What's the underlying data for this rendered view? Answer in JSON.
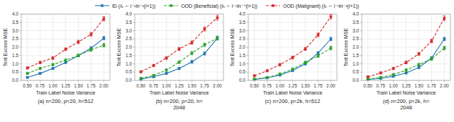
{
  "chart_data": [
    {
      "type": "line",
      "caption": "(a) n=200, p=20, h=512",
      "xlabel": "Train Label Noise Variance",
      "ylabel": "Test Excess MSE",
      "x": [
        0.5,
        0.75,
        1.0,
        1.25,
        1.5,
        1.75,
        2.0
      ],
      "series": [
        {
          "name": "ID (λᵢ ∼ i⁻¹ln⁻³(i+1))",
          "color": "#1f77b4",
          "line_style": "solid",
          "marker": "square",
          "values": [
            0.18,
            0.42,
            0.72,
            1.08,
            1.5,
            1.95,
            2.55
          ],
          "errors": [
            0.04,
            0.05,
            0.06,
            0.06,
            0.07,
            0.08,
            0.1
          ]
        },
        {
          "name": "OOD (Beneficial) (λᵢ ∼ i⁻¹ln⁻⁴(i+1))",
          "color": "#2ca02c",
          "line_style": "dashed",
          "marker": "square",
          "values": [
            0.42,
            0.72,
            0.95,
            1.22,
            1.5,
            1.85,
            2.12
          ],
          "errors": [
            0.05,
            0.06,
            0.07,
            0.07,
            0.08,
            0.09,
            0.11
          ]
        },
        {
          "name": "OOD (Malignant) (λᵢ ∼ i⁻¹ln⁻²(i+1))",
          "color": "#d62728",
          "line_style": "dashed",
          "marker": "square",
          "values": [
            0.75,
            1.08,
            1.35,
            1.88,
            2.32,
            2.78,
            3.72
          ],
          "errors": [
            0.06,
            0.07,
            0.08,
            0.08,
            0.1,
            0.11,
            0.13
          ]
        }
      ],
      "xlim": [
        0.38,
        2.12
      ],
      "xticks": [
        {
          "value": 0.5,
          "label": "0.50"
        },
        0.75,
        {
          "value": 1.0,
          "label": "1.00"
        },
        1.25,
        {
          "value": 1.5,
          "label": "1.50"
        },
        1.75,
        {
          "value": 2.0,
          "label": "2.00"
        }
      ],
      "ylim": [
        0.0,
        4.0
      ],
      "yticks": [
        {
          "value": 0.0,
          "label": "0.0"
        },
        0.5,
        {
          "value": 1.0,
          "label": "1.0"
        },
        1.5,
        {
          "value": 2.0,
          "label": "2.0"
        },
        2.5,
        {
          "value": 3.0,
          "label": "3.0"
        },
        3.5,
        {
          "value": 4.0,
          "label": "4.0"
        }
      ],
      "grid": true,
      "legend": "upper center"
    },
    {
      "type": "line",
      "caption": "(b) n=200, p=20, h=\n2048",
      "xlabel": "Train Label Noise Variance",
      "ylabel": "Test Excess MSE",
      "x": [
        0.5,
        0.75,
        1.0,
        1.25,
        1.5,
        1.75,
        2.0
      ],
      "series": [
        {
          "name": "ID (λᵢ ∼ i⁻¹ln⁻³(i+1))",
          "color": "#1f77b4",
          "line_style": "solid",
          "marker": "square",
          "values": [
            0.08,
            0.22,
            0.42,
            0.72,
            1.12,
            1.62,
            2.55
          ],
          "errors": [
            0.04,
            0.05,
            0.06,
            0.07,
            0.08,
            0.09,
            0.1
          ]
        },
        {
          "name": "OOD (Beneficial) (λᵢ ∼ i⁻¹ln⁻⁴(i+1))",
          "color": "#2ca02c",
          "line_style": "dashed",
          "marker": "square",
          "values": [
            0.12,
            0.3,
            0.62,
            1.1,
            1.65,
            2.15,
            2.55
          ],
          "errors": [
            0.05,
            0.06,
            0.07,
            0.08,
            0.09,
            0.1,
            0.12
          ]
        },
        {
          "name": "OOD (Malignant) (λᵢ ∼ i⁻¹ln⁻²(i+1))",
          "color": "#d62728",
          "line_style": "dashed",
          "marker": "square",
          "values": [
            0.52,
            0.9,
            1.35,
            1.9,
            2.28,
            3.1,
            3.78
          ],
          "errors": [
            0.06,
            0.07,
            0.08,
            0.09,
            0.1,
            0.12,
            0.14
          ]
        }
      ],
      "xlim": [
        0.38,
        2.12
      ],
      "xticks": [
        {
          "value": 0.5,
          "label": "0.50"
        },
        0.75,
        {
          "value": 1.0,
          "label": "1.00"
        },
        1.25,
        {
          "value": 1.5,
          "label": "1.50"
        },
        1.75,
        {
          "value": 2.0,
          "label": "2.00"
        }
      ],
      "ylim": [
        0.0,
        4.0
      ],
      "yticks": [
        {
          "value": 0.0,
          "label": "0.0"
        },
        0.5,
        {
          "value": 1.0,
          "label": "1.0"
        },
        1.5,
        {
          "value": 2.0,
          "label": "2.0"
        },
        2.5,
        {
          "value": 3.0,
          "label": "3.0"
        },
        3.5,
        {
          "value": 4.0,
          "label": "4.0"
        }
      ],
      "grid": true
    },
    {
      "type": "line",
      "caption": "(c) n=200, p=2k, h=512",
      "xlabel": "Train Label Noise Variance",
      "ylabel": "Test Excess MSE",
      "x": [
        0.5,
        0.75,
        1.0,
        1.25,
        1.5,
        1.75,
        2.0
      ],
      "series": [
        {
          "name": "ID (λᵢ ∼ i⁻¹ln⁻³(i+1))",
          "color": "#1f77b4",
          "line_style": "solid",
          "marker": "square",
          "values": [
            0.05,
            0.15,
            0.32,
            0.6,
            1.0,
            1.65,
            2.5
          ],
          "errors": [
            0.03,
            0.04,
            0.05,
            0.06,
            0.07,
            0.08,
            0.1
          ]
        },
        {
          "name": "OOD (Beneficial) (λᵢ ∼ i⁻¹ln⁻⁴(i+1))",
          "color": "#2ca02c",
          "line_style": "dashed",
          "marker": "square",
          "values": [
            0.08,
            0.18,
            0.38,
            0.68,
            1.08,
            1.48,
            1.95
          ],
          "errors": [
            0.04,
            0.05,
            0.06,
            0.07,
            0.08,
            0.09,
            0.11
          ]
        },
        {
          "name": "OOD (Malignant) (λᵢ ∼ i⁻¹ln⁻²(i+1))",
          "color": "#d62728",
          "line_style": "dashed",
          "marker": "square",
          "values": [
            0.28,
            0.58,
            0.95,
            1.38,
            1.9,
            2.75,
            3.85
          ],
          "errors": [
            0.05,
            0.06,
            0.07,
            0.08,
            0.09,
            0.11,
            0.14
          ]
        }
      ],
      "xlim": [
        0.38,
        2.12
      ],
      "xticks": [
        {
          "value": 0.5,
          "label": "0.50"
        },
        0.75,
        {
          "value": 1.0,
          "label": "1.00"
        },
        1.25,
        {
          "value": 1.5,
          "label": "1.50"
        },
        1.75,
        {
          "value": 2.0,
          "label": "2.00"
        }
      ],
      "ylim": [
        0.0,
        4.0
      ],
      "yticks": [
        {
          "value": 0.0,
          "label": "0.0"
        },
        0.5,
        {
          "value": 1.0,
          "label": "1.0"
        },
        1.5,
        {
          "value": 2.0,
          "label": "2.0"
        },
        2.5,
        {
          "value": 3.0,
          "label": "3.0"
        },
        3.5,
        {
          "value": 4.0,
          "label": "4.0"
        }
      ],
      "grid": true
    },
    {
      "type": "line",
      "caption": "(d) n=200, p=2k, h=\n2048",
      "xlabel": "Train Label Noise Variance",
      "ylabel": "Test Excess MSE",
      "x": [
        0.5,
        0.75,
        1.0,
        1.25,
        1.5,
        1.75,
        2.0
      ],
      "series": [
        {
          "name": "ID (λᵢ ∼ i⁻¹ln⁻³(i+1))",
          "color": "#1f77b4",
          "line_style": "solid",
          "marker": "square",
          "values": [
            0.05,
            0.12,
            0.25,
            0.45,
            0.78,
            1.35,
            2.5
          ],
          "errors": [
            0.03,
            0.04,
            0.05,
            0.06,
            0.07,
            0.08,
            0.1
          ]
        },
        {
          "name": "OOD (Beneficial) (λᵢ ∼ i⁻¹ln⁻⁴(i+1))",
          "color": "#2ca02c",
          "line_style": "dashed",
          "marker": "square",
          "values": [
            0.08,
            0.18,
            0.35,
            0.62,
            0.95,
            1.3,
            1.95
          ],
          "errors": [
            0.04,
            0.05,
            0.06,
            0.07,
            0.08,
            0.09,
            0.11
          ]
        },
        {
          "name": "OOD (Malignant) (λᵢ ∼ i⁻¹ln⁻²(i+1))",
          "color": "#d62728",
          "line_style": "dashed",
          "marker": "square",
          "values": [
            0.22,
            0.45,
            0.72,
            1.08,
            1.6,
            2.38,
            3.75
          ],
          "errors": [
            0.05,
            0.06,
            0.07,
            0.08,
            0.09,
            0.11,
            0.14
          ]
        }
      ],
      "xlim": [
        0.38,
        2.12
      ],
      "xticks": [
        {
          "value": 0.5,
          "label": "0.50"
        },
        0.75,
        {
          "value": 1.0,
          "label": "1.00"
        },
        1.25,
        {
          "value": 1.5,
          "label": "1.50"
        },
        1.75,
        {
          "value": 2.0,
          "label": "2.00"
        }
      ],
      "ylim": [
        0.0,
        4.0
      ],
      "yticks": [
        {
          "value": 0.0,
          "label": "0.0"
        },
        0.5,
        {
          "value": 1.0,
          "label": "1.0"
        },
        1.5,
        {
          "value": 2.0,
          "label": "2.0"
        },
        2.5,
        {
          "value": 3.0,
          "label": "3.0"
        },
        3.5,
        {
          "value": 4.0,
          "label": "4.0"
        }
      ],
      "grid": true
    }
  ]
}
